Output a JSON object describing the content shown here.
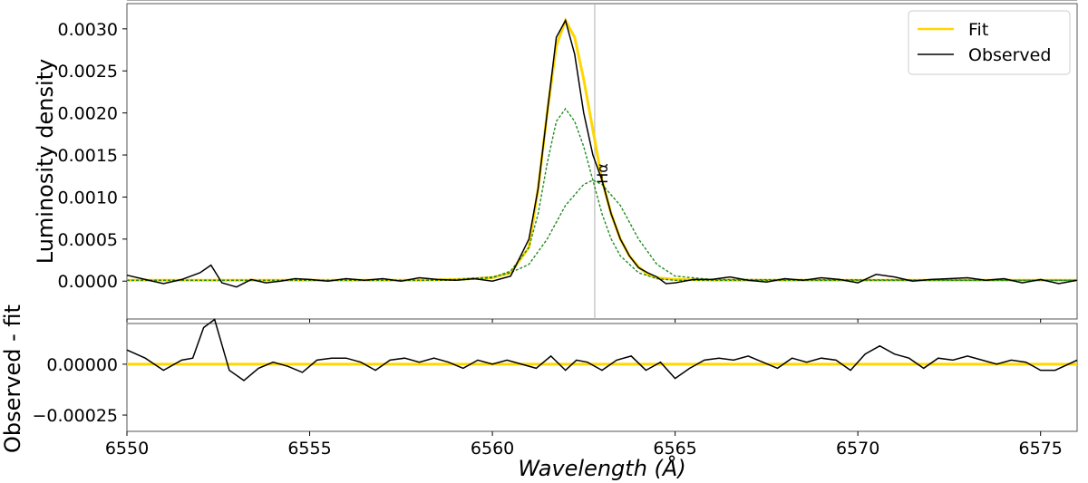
{
  "chart_data": [
    {
      "type": "line",
      "panel": "main",
      "ylabel": "Luminosity density",
      "xlim": [
        6550,
        6576
      ],
      "ylim": [
        -0.00045,
        0.0033
      ],
      "x_ticks": [
        6550,
        6555,
        6560,
        6565,
        6570,
        6575
      ],
      "y_ticks": [
        0.0,
        0.0005,
        0.001,
        0.0015,
        0.002,
        0.0025,
        0.003
      ],
      "y_tick_labels": [
        "0.0000",
        "0.0005",
        "0.0010",
        "0.0015",
        "0.0020",
        "0.0025",
        "0.0030"
      ],
      "legend_position": "top-right",
      "grid": false,
      "colors": {
        "fit": "#ffd700",
        "observed": "#000000",
        "component": "#228b22",
        "vline": "#bbbbbb"
      },
      "annotation": {
        "text": "Hα",
        "x": 6562.8
      },
      "vline_x": 6562.8,
      "series": [
        {
          "name": "Fit",
          "role": "fit",
          "x": [
            6550,
            6558,
            6559,
            6560,
            6560.5,
            6561,
            6561.25,
            6561.5,
            6561.75,
            6562,
            6562.25,
            6562.5,
            6562.75,
            6563,
            6563.25,
            6563.5,
            6563.75,
            6564,
            6564.25,
            6564.5,
            6565,
            6566,
            6576
          ],
          "y": [
            1e-05,
            1e-05,
            2e-05,
            4e-05,
            0.0001,
            0.0004,
            0.0011,
            0.002,
            0.0028,
            0.0031,
            0.0029,
            0.0024,
            0.0018,
            0.0012,
            0.0008,
            0.0005,
            0.0003,
            0.00017,
            8e-05,
            4e-05,
            2e-05,
            1e-05,
            1e-05
          ]
        },
        {
          "name": "Observed",
          "role": "observed",
          "x": [
            6550,
            6550.5,
            6551,
            6551.5,
            6552,
            6552.3,
            6552.6,
            6553,
            6553.4,
            6553.8,
            6554.2,
            6554.6,
            6555,
            6555.5,
            6556,
            6556.5,
            6557,
            6557.5,
            6558,
            6558.5,
            6559,
            6559.5,
            6560,
            6560.5,
            6561,
            6561.25,
            6561.5,
            6561.75,
            6562,
            6562.25,
            6562.5,
            6562.75,
            6563,
            6563.25,
            6563.5,
            6563.75,
            6564,
            6564.25,
            6564.5,
            6564.75,
            6565,
            6565.5,
            6566,
            6566.5,
            6567,
            6567.5,
            6568,
            6568.5,
            6569,
            6569.5,
            6570,
            6570.5,
            6571,
            6571.5,
            6572,
            6572.5,
            6573,
            6573.5,
            6574,
            6574.5,
            6575,
            6575.5,
            6576
          ],
          "y": [
            7e-05,
            2e-05,
            -3e-05,
            2e-05,
            0.0001,
            0.00019,
            -2e-05,
            -7e-05,
            2e-05,
            -2e-05,
            0.0,
            3e-05,
            2e-05,
            0.0,
            3e-05,
            1e-05,
            3e-05,
            0.0,
            4e-05,
            2e-05,
            1e-05,
            3e-05,
            0.0,
            6e-05,
            0.0005,
            0.0011,
            0.002,
            0.0029,
            0.0031,
            0.0027,
            0.002,
            0.0015,
            0.0012,
            0.0008,
            0.0005,
            0.0003,
            0.00016,
            0.0001,
            5e-05,
            -3e-05,
            -2e-05,
            2e-05,
            2e-05,
            5e-05,
            1e-05,
            -1e-05,
            3e-05,
            1e-05,
            4e-05,
            2e-05,
            -2e-05,
            8e-05,
            5e-05,
            0.0,
            2e-05,
            3e-05,
            4e-05,
            1e-05,
            3e-05,
            -2e-05,
            2e-05,
            -3e-05,
            1e-05
          ]
        },
        {
          "role": "component",
          "x": [
            6550,
            6558,
            6559,
            6560,
            6560.5,
            6561,
            6561.25,
            6561.5,
            6561.75,
            6562,
            6562.25,
            6562.5,
            6562.75,
            6563,
            6563.25,
            6563.5,
            6564,
            6564.5,
            6565,
            6566,
            6576
          ],
          "y": [
            1e-05,
            1e-05,
            1e-05,
            4e-05,
            0.00012,
            0.0004,
            0.0008,
            0.0014,
            0.0019,
            0.00205,
            0.0019,
            0.0016,
            0.0012,
            0.0008,
            0.0005,
            0.0003,
            0.0001,
            3e-05,
            1e-05,
            1e-05,
            1e-05
          ]
        },
        {
          "role": "component",
          "x": [
            6550,
            6558,
            6559,
            6560,
            6560.5,
            6561,
            6561.5,
            6562,
            6562.5,
            6562.75,
            6563,
            6563.5,
            6564,
            6564.5,
            6565,
            6566,
            6576
          ],
          "y": [
            1e-05,
            1e-05,
            2e-05,
            5e-05,
            0.0001,
            0.0002,
            0.0005,
            0.0009,
            0.00115,
            0.0012,
            0.00115,
            0.0009,
            0.0005,
            0.0002,
            6e-05,
            2e-05,
            1e-05
          ]
        }
      ]
    },
    {
      "type": "line",
      "panel": "residual",
      "xlabel": "Wavelength (Å)",
      "ylabel": "Observed - fit",
      "xlim": [
        6550,
        6576
      ],
      "ylim": [
        -0.00033,
        0.0002
      ],
      "x_ticks": [
        6550,
        6555,
        6560,
        6565,
        6570,
        6575
      ],
      "y_ticks": [
        0.0,
        -0.00025
      ],
      "y_tick_labels": [
        "0.00000",
        "−0.00025"
      ],
      "grid": false,
      "series": [
        {
          "role": "zero-line",
          "x": [
            6550,
            6576
          ],
          "y": [
            0,
            0
          ]
        },
        {
          "role": "residual",
          "x": [
            6550,
            6550.5,
            6551,
            6551.5,
            6551.8,
            6552.1,
            6552.4,
            6552.8,
            6553.2,
            6553.6,
            6554,
            6554.4,
            6554.8,
            6555.2,
            6555.6,
            6556,
            6556.4,
            6556.8,
            6557.2,
            6557.6,
            6558,
            6558.4,
            6558.8,
            6559.2,
            6559.6,
            6560,
            6560.4,
            6560.8,
            6561.2,
            6561.6,
            6562,
            6562.3,
            6562.6,
            6563,
            6563.4,
            6563.8,
            6564.2,
            6564.6,
            6565,
            6565.4,
            6565.8,
            6566.2,
            6566.6,
            6567,
            6567.4,
            6567.8,
            6568.2,
            6568.6,
            6569,
            6569.4,
            6569.8,
            6570.2,
            6570.6,
            6571,
            6571.4,
            6571.8,
            6572.2,
            6572.6,
            6573,
            6573.4,
            6573.8,
            6574.2,
            6574.6,
            6575,
            6575.4,
            6576
          ],
          "y": [
            7e-05,
            3e-05,
            -3e-05,
            2e-05,
            3e-05,
            0.00018,
            0.00022,
            -3e-05,
            -8e-05,
            -2e-05,
            1e-05,
            -1e-05,
            -4e-05,
            2e-05,
            3e-05,
            3e-05,
            1e-05,
            -3e-05,
            2e-05,
            3e-05,
            1e-05,
            3e-05,
            1e-05,
            -2e-05,
            2e-05,
            0.0,
            2e-05,
            0.0,
            -2e-05,
            4e-05,
            -3e-05,
            2e-05,
            1e-05,
            -3e-05,
            2e-05,
            4e-05,
            -3e-05,
            1e-05,
            -7e-05,
            -2e-05,
            2e-05,
            3e-05,
            2e-05,
            4e-05,
            1e-05,
            -2e-05,
            3e-05,
            1e-05,
            3e-05,
            2e-05,
            -3e-05,
            5e-05,
            9e-05,
            5e-05,
            3e-05,
            -2e-05,
            3e-05,
            2e-05,
            4e-05,
            2e-05,
            0.0,
            2e-05,
            1e-05,
            -3e-05,
            -3e-05,
            2e-05
          ]
        }
      ]
    }
  ]
}
